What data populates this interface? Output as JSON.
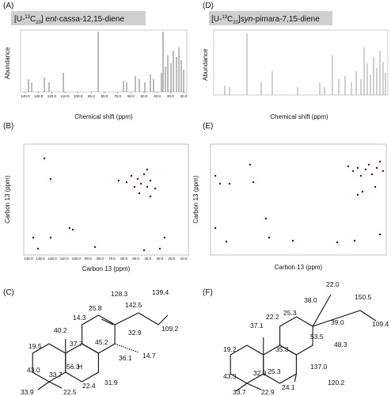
{
  "panels": {
    "a": {
      "label": "(A)",
      "title": {
        "open": "[U-",
        "iso": "13",
        "el": "C",
        "count": "20",
        "close": "]",
        "italic": "ent",
        "name": "-cassa-12,15-diene"
      },
      "ylabel": "Abundance",
      "xticks": [
        "140.0",
        "130.0",
        "120.0",
        "110.0",
        "100.0",
        "90.0",
        "80.0",
        "70.0",
        "60.0",
        "50.0",
        "40.0",
        "30.0",
        "20.0"
      ],
      "xlabel": "Chemical shift (ppm)"
    },
    "b": {
      "label": "(B)",
      "xticks": [
        "140.0",
        "130.0",
        "120.0",
        "110.0",
        "100.0",
        "90.0",
        "80.0",
        "70.0",
        "60.0",
        "50.0",
        "40.0",
        "30.0",
        "20.0",
        "10.0"
      ],
      "xlabel": "Carbon 13 (ppm)",
      "ylabel": "Carbon 13 (ppm)"
    },
    "c": {
      "label": "(C)",
      "shifts": [
        "14.3",
        "40.2",
        "25.8",
        "128.3",
        "142.5",
        "139.4",
        "109.2",
        "19.5",
        "37.7",
        "45.2",
        "32.9",
        "14.7",
        "36.1",
        "43.0",
        "56.3",
        "33.7",
        "31.9",
        "22.4",
        "33.9",
        "22.5"
      ],
      "h": "H"
    },
    "d": {
      "label": "(D)",
      "title": {
        "open": "[U-",
        "iso": "13",
        "el": "C",
        "count": "20",
        "close": "]",
        "italic": "syn",
        "name": "-pimara-7,15-diene"
      },
      "ylabel": "Abundance",
      "xlabel": "Chemical shift (ppm)"
    },
    "e": {
      "label": "(E)",
      "xlabel": "Carbon 13 (ppm)",
      "ylabel": "Carbon 13 (ppm)"
    },
    "f": {
      "label": "(F)",
      "shifts": [
        "22.0",
        "150.5",
        "38.0",
        "25.3",
        "39.0",
        "109.4",
        "37.1",
        "22.2",
        "53.5",
        "48.3",
        "19.2",
        "35.3",
        "137.0",
        "25.3",
        "43.3",
        "32.9",
        "120.2",
        "24.1",
        "33.7",
        "22.9"
      ]
    }
  }
}
